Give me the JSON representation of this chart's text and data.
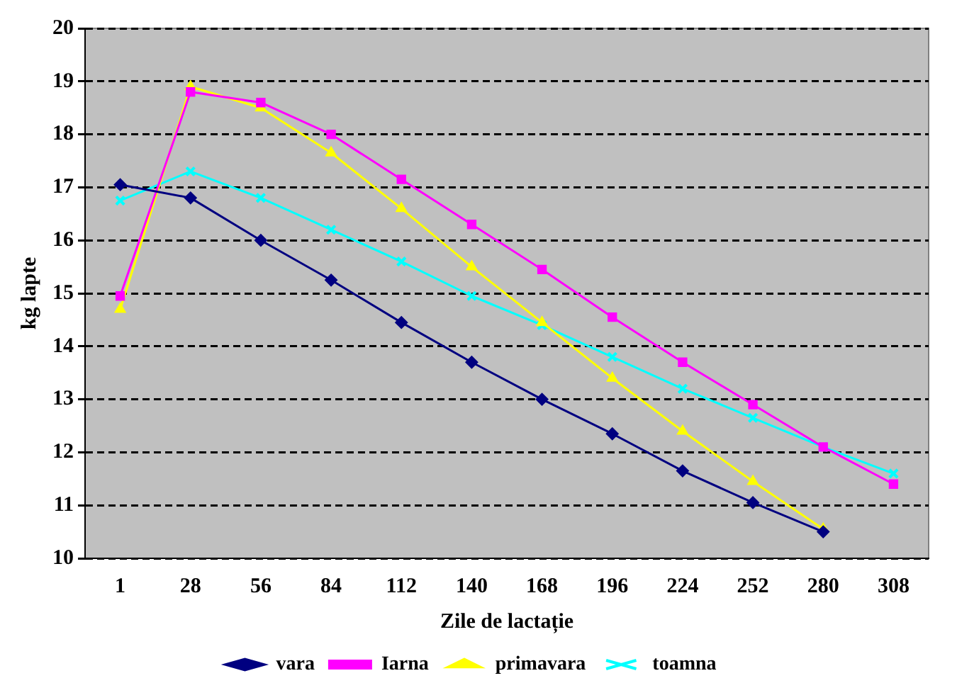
{
  "chart_data": {
    "type": "line",
    "xlabel": "Zile de lactație",
    "ylabel": "kg lapte",
    "categories": [
      "1",
      "28",
      "56",
      "84",
      "112",
      "140",
      "168",
      "196",
      "224",
      "252",
      "280",
      "308"
    ],
    "ylim": [
      10,
      20
    ],
    "yticks": [
      10,
      11,
      12,
      13,
      14,
      15,
      16,
      17,
      18,
      19,
      20
    ],
    "grid": "y",
    "legend": "bottom",
    "series": [
      {
        "name": "vara",
        "color": "#000080",
        "marker": "diamond",
        "values": [
          17.05,
          16.8,
          16.0,
          15.25,
          14.45,
          13.7,
          13.0,
          12.35,
          11.65,
          11.05,
          10.5,
          null
        ]
      },
      {
        "name": "Iarna",
        "color": "#ff00ff",
        "marker": "square",
        "values": [
          14.95,
          18.8,
          18.6,
          18.0,
          17.15,
          16.3,
          15.45,
          14.55,
          13.7,
          12.9,
          12.1,
          11.4
        ]
      },
      {
        "name": "primavara",
        "color": "#ffff00",
        "marker": "triangle",
        "values": [
          14.7,
          18.9,
          18.5,
          17.65,
          16.6,
          15.5,
          14.45,
          13.4,
          12.4,
          11.45,
          10.55,
          null
        ]
      },
      {
        "name": "toamna",
        "color": "#00ffff",
        "marker": "cross",
        "values": [
          16.75,
          17.3,
          16.8,
          16.2,
          15.6,
          14.95,
          14.4,
          13.8,
          13.2,
          12.65,
          12.1,
          11.6
        ]
      }
    ]
  }
}
